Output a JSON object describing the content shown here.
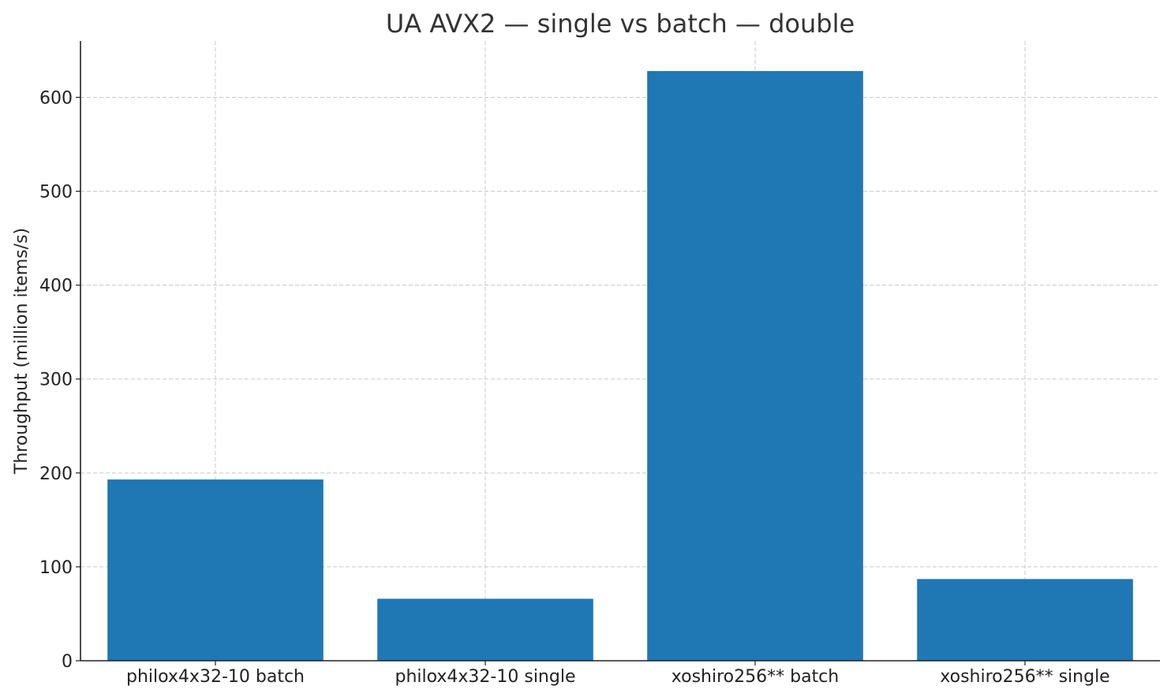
{
  "chart_data": {
    "type": "bar",
    "title": "UA AVX2 — single vs batch — double",
    "xlabel": "",
    "ylabel": "Throughput (million items/s)",
    "categories": [
      "philox4x32-10 batch",
      "philox4x32-10 single",
      "xoshiro256** batch",
      "xoshiro256** single"
    ],
    "values": [
      193,
      66,
      628,
      87
    ],
    "ylim": [
      0,
      660
    ],
    "yticks": [
      0,
      100,
      200,
      300,
      400,
      500,
      600
    ],
    "grid": true,
    "bar_color": "#1f77b4",
    "axis_color": "#222222",
    "grid_color": "#c8c8c8"
  }
}
